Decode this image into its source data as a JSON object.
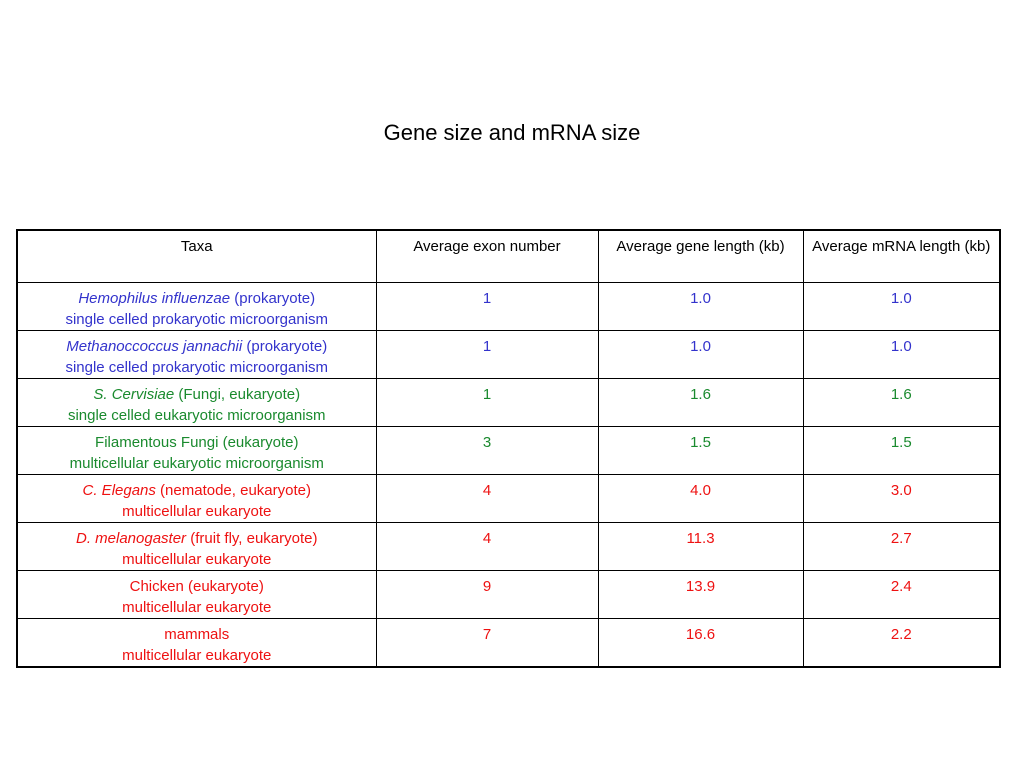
{
  "title": "Gene size and mRNA size",
  "colors": {
    "blue": "#3333cc",
    "green": "#1a8a2e",
    "red": "#ee1111",
    "black": "#000000"
  },
  "headers": {
    "taxa": "Taxa",
    "exon": "Average exon number",
    "gene": "Average gene length (kb)",
    "mrna": "Average mRNA length (kb)"
  },
  "rows": [
    {
      "color": "#3333cc",
      "name_italic": "Hemophilus influenzae",
      "name_rest": " (prokaryote)",
      "description": "single celled prokaryotic microorganism",
      "exon": "1",
      "gene": "1.0",
      "mrna": "1.0"
    },
    {
      "color": "#3333cc",
      "name_italic": "Methanoccoccus jannachii",
      "name_rest": " (prokaryote)",
      "description": "single celled prokaryotic microorganism",
      "exon": "1",
      "gene": "1.0",
      "mrna": "1.0"
    },
    {
      "color": "#1a8a2e",
      "name_italic": "S. Cervisiae",
      "name_rest": " (Fungi, eukaryote)",
      "description": "single celled eukaryotic microorganism",
      "exon": "1",
      "gene": "1.6",
      "mrna": "1.6"
    },
    {
      "color": "#1a8a2e",
      "name_italic": "",
      "name_rest": "Filamentous Fungi (eukaryote)",
      "description": "multicellular eukaryotic microorganism",
      "exon": "3",
      "gene": "1.5",
      "mrna": "1.5"
    },
    {
      "color": "#ee1111",
      "name_italic": "C. Elegans",
      "name_rest": " (nematode, eukaryote)",
      "description": "multicellular eukaryote",
      "exon": "4",
      "gene": "4.0",
      "mrna": "3.0"
    },
    {
      "color": "#ee1111",
      "name_italic": "D. melanogaster",
      "name_rest": " (fruit fly, eukaryote)",
      "description": "multicellular eukaryote",
      "exon": "4",
      "gene": "11.3",
      "mrna": "2.7"
    },
    {
      "color": "#ee1111",
      "name_italic": "",
      "name_rest": "Chicken (eukaryote)",
      "description": "multicellular eukaryote",
      "exon": "9",
      "gene": "13.9",
      "mrna": "2.4"
    },
    {
      "color": "#ee1111",
      "name_italic": "",
      "name_rest": "mammals",
      "description": "multicellular eukaryote",
      "exon": "7",
      "gene": "16.6",
      "mrna": "2.2"
    }
  ]
}
